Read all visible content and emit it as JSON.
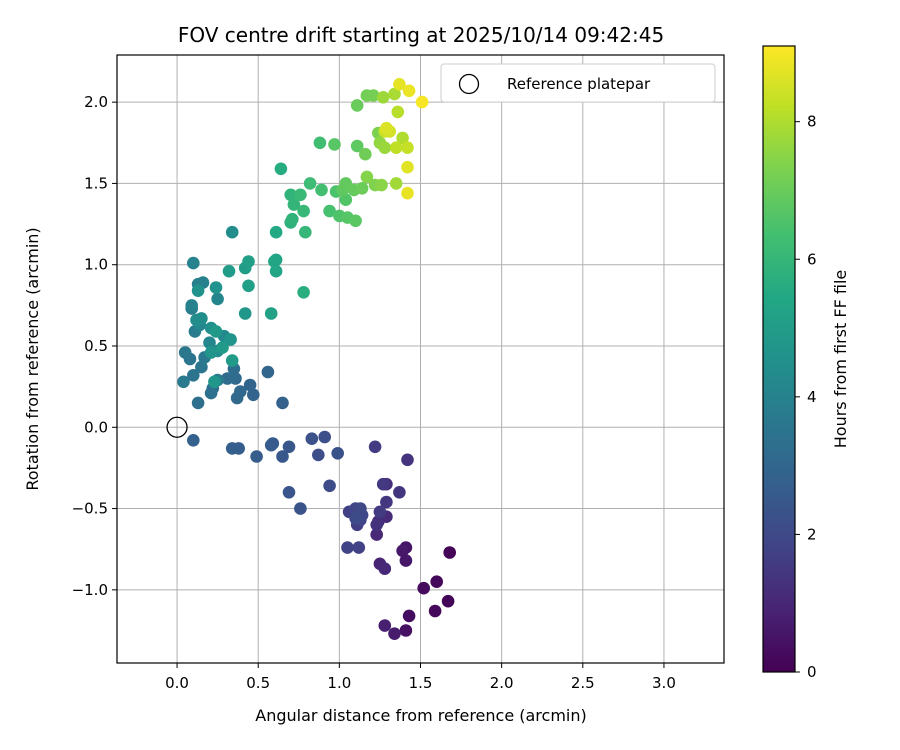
{
  "chart_data": {
    "type": "scatter",
    "title": "FOV centre drift starting at 2025/10/14 09:42:45",
    "xlabel": "Angular distance from reference (arcmin)",
    "ylabel": "Rotation from reference (arcmin)",
    "xlim": [
      -0.37,
      3.37
    ],
    "ylim": [
      -1.45,
      2.29
    ],
    "x_ticks": [
      0.0,
      0.5,
      1.0,
      1.5,
      2.0,
      2.5,
      3.0
    ],
    "x_tick_labels": [
      "0.0",
      "0.5",
      "1.0",
      "1.5",
      "2.0",
      "2.5",
      "3.0"
    ],
    "y_ticks": [
      -1.0,
      -0.5,
      0.0,
      0.5,
      1.0,
      1.5,
      2.0
    ],
    "y_tick_labels": [
      "−1.0",
      "−0.5",
      "0.0",
      "0.5",
      "1.0",
      "1.5",
      "2.0"
    ],
    "grid": true,
    "legend": {
      "position": "top-right",
      "entries": [
        "Reference platepar"
      ]
    },
    "reference_point": {
      "x": 0.0,
      "y": 0.0,
      "marker": "open-circle"
    },
    "colorbar": {
      "label": "Hours from first FF file",
      "colormap": "viridis",
      "range": [
        0,
        9.1
      ],
      "ticks": [
        0,
        2,
        4,
        6,
        8
      ],
      "tick_labels": [
        "0",
        "2",
        "4",
        "6",
        "8"
      ]
    },
    "series": [
      {
        "points": [
          [
            1.68,
            -0.77,
            0.05
          ],
          [
            1.67,
            -1.07,
            0.1
          ],
          [
            1.6,
            -0.95,
            0.15
          ],
          [
            1.59,
            -1.13,
            0.2
          ],
          [
            1.52,
            -0.99,
            0.25
          ],
          [
            1.43,
            -1.16,
            0.3
          ],
          [
            1.41,
            -1.25,
            0.4
          ],
          [
            1.41,
            -0.74,
            0.5
          ],
          [
            1.41,
            -0.82,
            0.55
          ],
          [
            1.39,
            -0.76,
            0.6
          ],
          [
            1.34,
            -1.27,
            0.7
          ],
          [
            1.28,
            -1.22,
            0.8
          ],
          [
            1.25,
            -0.84,
            0.9
          ],
          [
            1.28,
            -0.87,
            1.0
          ],
          [
            1.23,
            -0.66,
            1.05
          ],
          [
            1.29,
            -0.55,
            1.1
          ],
          [
            1.24,
            -0.58,
            1.15
          ],
          [
            1.29,
            -0.35,
            1.2
          ],
          [
            1.23,
            -0.6,
            1.3
          ],
          [
            1.42,
            -0.2,
            1.35
          ],
          [
            1.37,
            -0.4,
            1.4
          ],
          [
            1.29,
            -0.46,
            1.45
          ],
          [
            1.27,
            -0.35,
            1.5
          ],
          [
            1.25,
            -0.52,
            1.55
          ],
          [
            1.22,
            -0.12,
            1.6
          ],
          [
            1.11,
            -0.6,
            1.65
          ],
          [
            1.06,
            -0.52,
            1.7
          ],
          [
            1.12,
            -0.74,
            1.75
          ],
          [
            1.05,
            -0.74,
            1.8
          ],
          [
            1.13,
            -0.57,
            1.85
          ],
          [
            1.1,
            -0.5,
            1.9
          ],
          [
            1.14,
            -0.54,
            1.95
          ],
          [
            1.13,
            -0.5,
            2.0
          ],
          [
            1.1,
            -0.56,
            2.05
          ],
          [
            0.94,
            -0.36,
            2.1
          ],
          [
            0.87,
            -0.17,
            2.15
          ],
          [
            0.91,
            -0.06,
            2.2
          ],
          [
            0.99,
            -0.16,
            2.25
          ],
          [
            0.83,
            -0.07,
            2.3
          ],
          [
            0.76,
            -0.5,
            2.35
          ],
          [
            0.69,
            -0.4,
            2.4
          ],
          [
            0.69,
            -0.12,
            2.45
          ],
          [
            0.65,
            -0.18,
            2.5
          ],
          [
            0.59,
            -0.1,
            2.55
          ],
          [
            0.58,
            -0.11,
            2.6
          ],
          [
            0.49,
            -0.18,
            2.65
          ],
          [
            0.38,
            -0.13,
            2.7
          ],
          [
            0.34,
            -0.13,
            2.75
          ],
          [
            0.1,
            -0.08,
            2.8
          ],
          [
            0.65,
            0.15,
            2.85
          ],
          [
            0.47,
            0.2,
            2.9
          ],
          [
            0.45,
            0.26,
            2.95
          ],
          [
            0.56,
            0.34,
            3.0
          ],
          [
            0.39,
            0.22,
            3.05
          ],
          [
            0.37,
            0.18,
            3.1
          ],
          [
            0.36,
            0.3,
            3.15
          ],
          [
            0.31,
            0.3,
            3.2
          ],
          [
            0.35,
            0.36,
            3.25
          ],
          [
            0.13,
            0.15,
            3.3
          ],
          [
            0.22,
            0.24,
            3.35
          ],
          [
            0.21,
            0.21,
            3.4
          ],
          [
            0.1,
            0.32,
            3.45
          ],
          [
            0.08,
            0.42,
            3.5
          ],
          [
            0.15,
            0.37,
            3.55
          ],
          [
            0.05,
            0.46,
            3.6
          ],
          [
            0.17,
            0.43,
            3.65
          ],
          [
            0.04,
            0.28,
            3.7
          ],
          [
            0.25,
            0.29,
            3.75
          ],
          [
            0.11,
            0.59,
            3.8
          ],
          [
            0.09,
            0.73,
            3.85
          ],
          [
            0.13,
            0.88,
            3.9
          ],
          [
            0.16,
            0.89,
            3.95
          ],
          [
            0.1,
            1.01,
            4.0
          ],
          [
            0.09,
            0.75,
            4.05
          ],
          [
            0.25,
            0.79,
            4.1
          ],
          [
            0.14,
            0.63,
            4.15
          ],
          [
            0.2,
            0.52,
            4.2
          ],
          [
            0.29,
            0.56,
            4.25
          ],
          [
            0.25,
            0.47,
            4.3
          ],
          [
            0.34,
            1.2,
            4.35
          ],
          [
            0.12,
            0.66,
            4.4
          ],
          [
            0.15,
            0.67,
            4.45
          ],
          [
            0.21,
            0.61,
            4.5
          ],
          [
            0.13,
            0.84,
            4.55
          ],
          [
            0.24,
            0.86,
            4.6
          ],
          [
            0.33,
            0.54,
            4.65
          ],
          [
            0.21,
            0.46,
            4.7
          ],
          [
            0.23,
            0.28,
            4.75
          ],
          [
            0.42,
            0.7,
            4.8
          ],
          [
            0.24,
            0.59,
            4.85
          ],
          [
            0.28,
            0.49,
            4.9
          ],
          [
            0.34,
            0.41,
            4.95
          ],
          [
            0.32,
            0.96,
            5.0
          ],
          [
            0.42,
            0.98,
            5.05
          ],
          [
            0.44,
            1.02,
            5.1
          ],
          [
            0.44,
            0.87,
            5.15
          ],
          [
            0.58,
            0.7,
            5.2
          ],
          [
            0.61,
            1.03,
            5.3
          ],
          [
            0.6,
            1.02,
            5.35
          ],
          [
            0.61,
            0.96,
            5.4
          ],
          [
            0.61,
            1.2,
            5.5
          ],
          [
            0.64,
            1.59,
            5.6
          ],
          [
            0.78,
            0.83,
            5.7
          ],
          [
            0.7,
            1.26,
            5.8
          ],
          [
            0.71,
            1.28,
            5.85
          ],
          [
            0.7,
            1.43,
            5.9
          ],
          [
            0.72,
            1.37,
            5.95
          ],
          [
            0.79,
            1.2,
            6.0
          ],
          [
            0.78,
            1.33,
            6.05
          ],
          [
            0.76,
            1.43,
            6.1
          ],
          [
            0.82,
            1.5,
            6.2
          ],
          [
            0.88,
            1.75,
            6.3
          ],
          [
            0.89,
            1.46,
            6.35
          ],
          [
            0.94,
            1.33,
            6.4
          ],
          [
            0.98,
            1.45,
            6.5
          ],
          [
            1.0,
            1.3,
            6.55
          ],
          [
            1.04,
            1.4,
            6.6
          ],
          [
            1.05,
            1.29,
            6.65
          ],
          [
            0.97,
            1.74,
            6.7
          ],
          [
            1.1,
            1.27,
            6.75
          ],
          [
            1.11,
            1.73,
            6.8
          ],
          [
            1.02,
            1.46,
            6.85
          ],
          [
            1.04,
            1.5,
            6.9
          ],
          [
            1.09,
            1.46,
            6.95
          ],
          [
            1.11,
            1.98,
            7.0
          ],
          [
            1.14,
            1.47,
            7.05
          ],
          [
            1.16,
            1.68,
            7.1
          ],
          [
            1.17,
            2.04,
            7.15
          ],
          [
            1.21,
            2.04,
            7.2
          ],
          [
            1.24,
            1.81,
            7.3
          ],
          [
            1.22,
            1.49,
            7.35
          ],
          [
            1.17,
            1.54,
            7.4
          ],
          [
            1.26,
            1.49,
            7.5
          ],
          [
            1.25,
            1.75,
            7.6
          ],
          [
            1.28,
            1.72,
            7.7
          ],
          [
            1.27,
            2.03,
            7.75
          ],
          [
            1.35,
            1.5,
            7.8
          ],
          [
            1.34,
            2.05,
            7.9
          ],
          [
            1.39,
            1.78,
            8.0
          ],
          [
            1.36,
            1.94,
            8.1
          ],
          [
            1.35,
            1.72,
            8.2
          ],
          [
            1.42,
            1.72,
            8.3
          ],
          [
            1.28,
            1.82,
            8.4
          ],
          [
            1.31,
            1.82,
            8.5
          ],
          [
            1.29,
            1.84,
            8.6
          ],
          [
            1.42,
            1.6,
            8.7
          ],
          [
            1.37,
            2.11,
            8.75
          ],
          [
            1.42,
            1.44,
            8.8
          ],
          [
            1.43,
            2.07,
            8.85
          ],
          [
            1.51,
            2.0,
            9.0
          ]
        ]
      }
    ]
  }
}
